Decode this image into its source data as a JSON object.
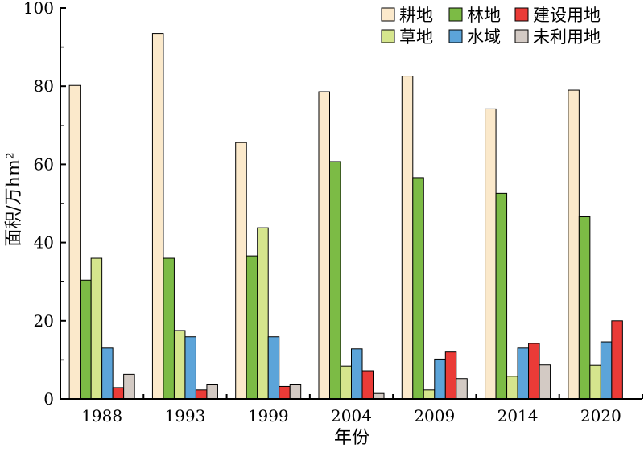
{
  "chart_data": {
    "type": "bar",
    "title": "",
    "xlabel": "年份",
    "ylabel": "面积/万hm²",
    "ylim": [
      0,
      100
    ],
    "yticks": [
      0,
      20,
      40,
      60,
      80,
      100
    ],
    "categories": [
      "1988",
      "1993",
      "1999",
      "2004",
      "2009",
      "2014",
      "2020"
    ],
    "legend_position": "top-right",
    "grid": false,
    "series": [
      {
        "name": "耕地",
        "color": "#fbe9cb",
        "values": [
          80.2,
          93.5,
          65.6,
          78.6,
          82.6,
          74.2,
          79.0
        ]
      },
      {
        "name": "林地",
        "color": "#7cbb45",
        "values": [
          30.4,
          36.0,
          36.6,
          60.7,
          56.6,
          52.6,
          46.6
        ]
      },
      {
        "name": "草地",
        "color": "#d5e58d",
        "values": [
          36.0,
          17.5,
          43.8,
          8.4,
          2.3,
          5.8,
          8.6
        ]
      },
      {
        "name": "水域",
        "color": "#5ca4d9",
        "values": [
          13.0,
          15.9,
          15.9,
          12.8,
          10.2,
          13.0,
          14.6
        ]
      },
      {
        "name": "建设用地",
        "color": "#ea3b37",
        "values": [
          2.9,
          2.3,
          3.2,
          7.2,
          12.0,
          14.2,
          20.0
        ]
      },
      {
        "name": "未利用地",
        "color": "#d3cac4",
        "values": [
          6.3,
          3.6,
          3.6,
          1.4,
          5.2,
          8.7,
          0
        ]
      }
    ]
  }
}
